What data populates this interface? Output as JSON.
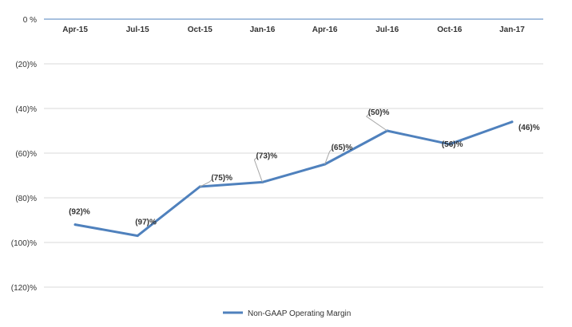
{
  "chart_data": {
    "type": "line",
    "title": "",
    "xlabel": "",
    "ylabel": "",
    "categories": [
      "Apr-15",
      "Jul-15",
      "Oct-15",
      "Jan-16",
      "Apr-16",
      "Jul-16",
      "Oct-16",
      "Jan-17"
    ],
    "series": [
      {
        "name": "Non-GAAP Operating Margin",
        "values": [
          -92,
          -97,
          -75,
          -73,
          -65,
          -50,
          -56,
          -46
        ],
        "labels": [
          "(92)%",
          "(97)%",
          "(75)%",
          "(73)%",
          "(65)%",
          "(50)%",
          "(56)%",
          "(46)%"
        ],
        "color": "#4f81bd"
      }
    ],
    "ylim": [
      -120,
      0
    ],
    "yticks": [
      0,
      -20,
      -40,
      -60,
      -80,
      -100,
      -120
    ],
    "ytick_labels": [
      "0 %",
      "(20)%",
      "(40)%",
      "(60)%",
      "(80)%",
      "(100)%",
      "(120)%"
    ],
    "x_axis_position": "top",
    "grid": true,
    "gridline_color": "#d9d9d9",
    "axis_line_color": "#4f81bd",
    "legend_position": "bottom"
  }
}
